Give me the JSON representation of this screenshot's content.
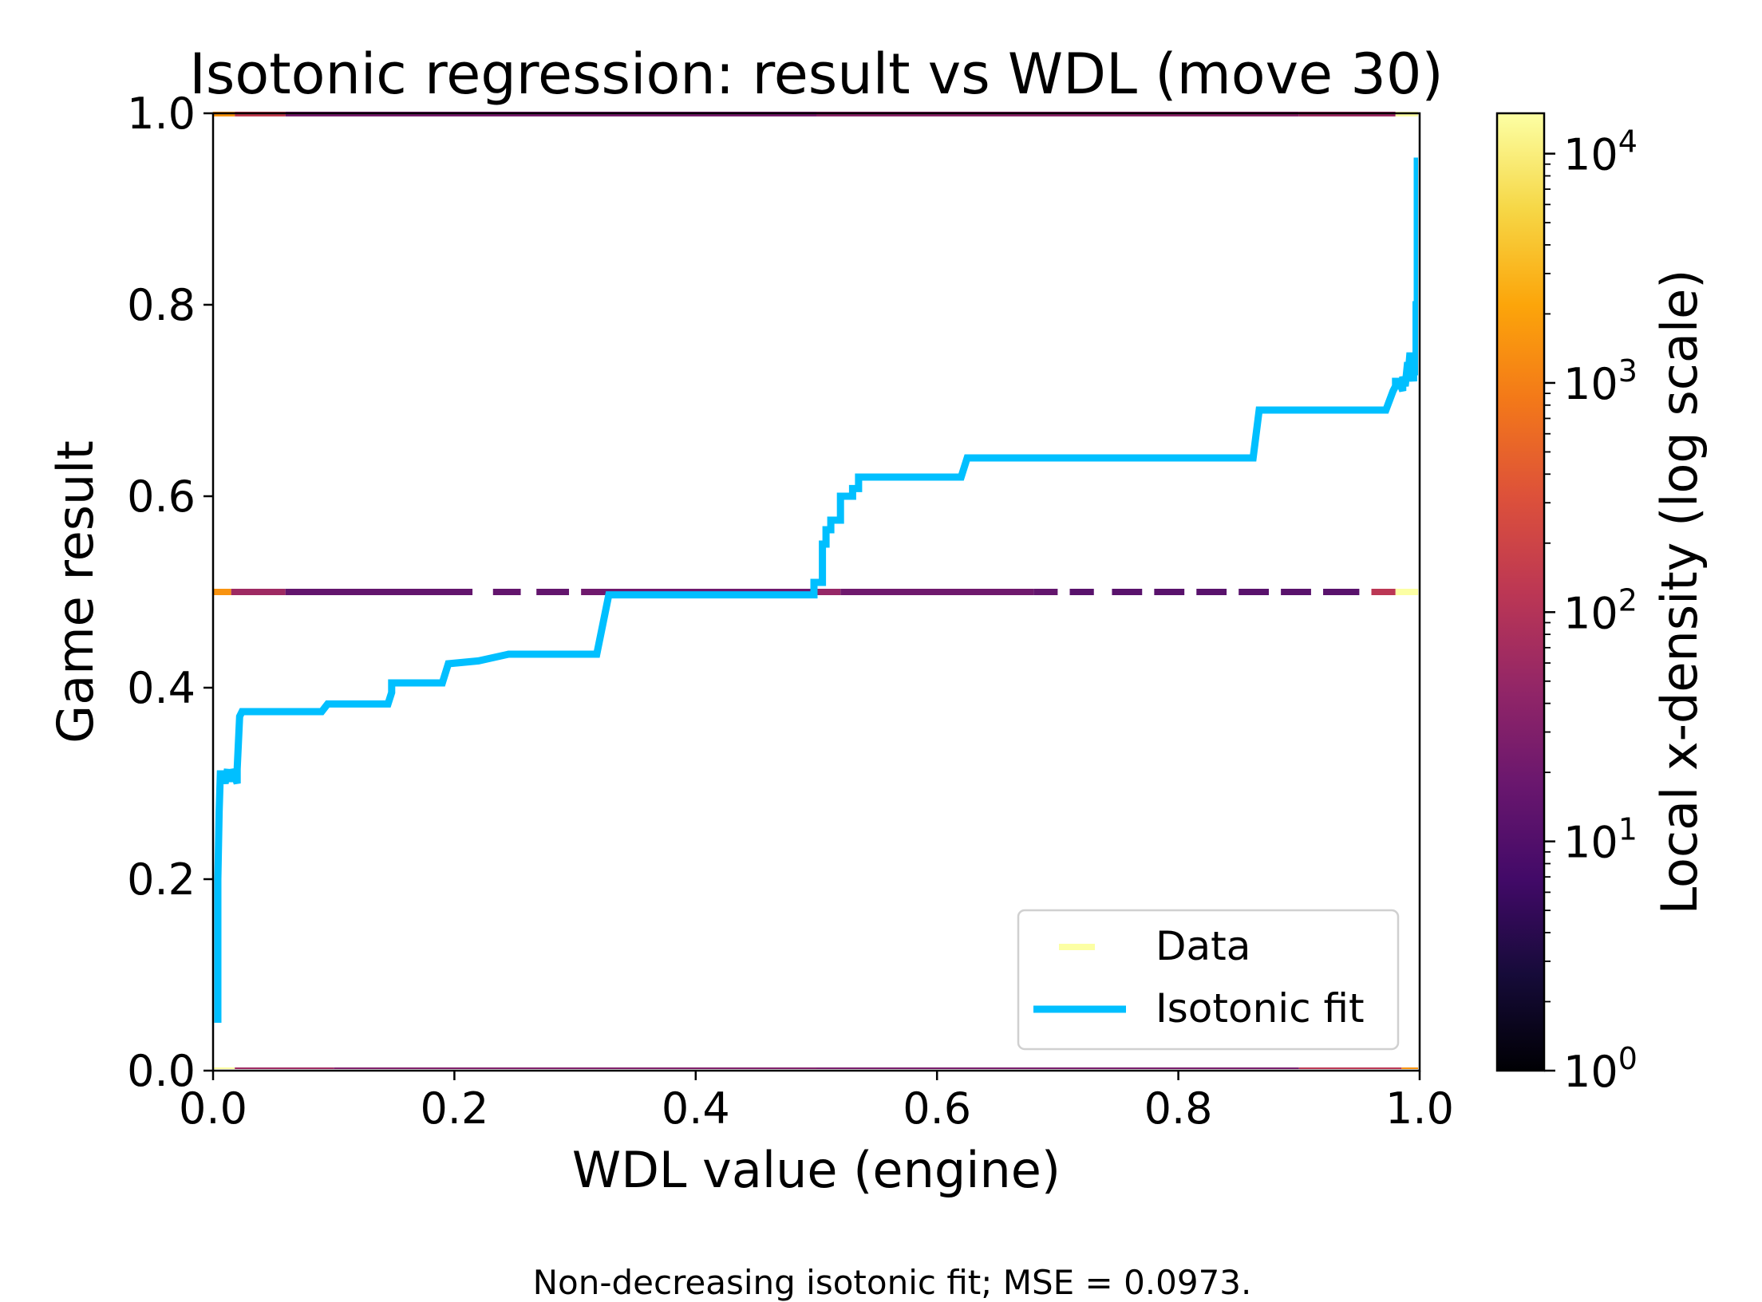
{
  "chart_data": {
    "type": "line",
    "title": "Isotonic regression: result vs WDL (move 30)",
    "xlabel": "WDL value (engine)",
    "ylabel": "Game result",
    "xlim": [
      0.0,
      1.0
    ],
    "ylim": [
      0.0,
      1.0
    ],
    "xticks": [
      "0.0",
      "0.2",
      "0.4",
      "0.6",
      "0.8",
      "1.0"
    ],
    "yticks": [
      "0.0",
      "0.2",
      "0.4",
      "0.6",
      "0.8",
      "1.0"
    ],
    "caption": "Non-decreasing isotonic fit; MSE = 0.0973.",
    "legend": {
      "position": "lower-right",
      "data_label": "Data",
      "fit_label": "Isotonic fit"
    },
    "colors": {
      "fit": "#00bfff",
      "data_legend": "#fcffa4"
    },
    "colorbar": {
      "label": "Local x-density (log scale)",
      "scale": "log",
      "range": [
        1,
        15000
      ],
      "tick_exponents": [
        "0",
        "1",
        "2",
        "3",
        "4"
      ],
      "tick_base": "10",
      "colormap": "inferno"
    },
    "data_series": [
      {
        "y": 1.0,
        "segments": [
          {
            "x0": 0.0,
            "x1": 0.018,
            "density": 1500
          },
          {
            "x0": 0.018,
            "x1": 0.06,
            "density": 150
          },
          {
            "x0": 0.06,
            "x1": 0.5,
            "density": 25
          },
          {
            "x0": 0.5,
            "x1": 0.9,
            "density": 40
          },
          {
            "x0": 0.9,
            "x1": 0.98,
            "density": 60
          },
          {
            "x0": 0.98,
            "x1": 1.0,
            "density": 15000
          }
        ]
      },
      {
        "y": 0.5,
        "segments": [
          {
            "x0": 0.0,
            "x1": 0.015,
            "density": 1500
          },
          {
            "x0": 0.015,
            "x1": 0.06,
            "density": 60
          },
          {
            "x0": 0.06,
            "x1": 0.215,
            "density": 15
          },
          {
            "x0": 0.232,
            "x1": 0.255,
            "density": 15
          },
          {
            "x0": 0.268,
            "x1": 0.295,
            "density": 15
          },
          {
            "x0": 0.305,
            "x1": 0.5,
            "density": 20
          },
          {
            "x0": 0.5,
            "x1": 0.52,
            "density": 50
          },
          {
            "x0": 0.52,
            "x1": 0.68,
            "density": 20
          },
          {
            "x0": 0.68,
            "x1": 0.7,
            "density": 15
          },
          {
            "x0": 0.71,
            "x1": 0.73,
            "density": 12
          },
          {
            "x0": 0.745,
            "x1": 0.77,
            "density": 12
          },
          {
            "x0": 0.78,
            "x1": 0.805,
            "density": 12
          },
          {
            "x0": 0.815,
            "x1": 0.84,
            "density": 12
          },
          {
            "x0": 0.85,
            "x1": 0.875,
            "density": 12
          },
          {
            "x0": 0.885,
            "x1": 0.91,
            "density": 12
          },
          {
            "x0": 0.92,
            "x1": 0.95,
            "density": 12
          },
          {
            "x0": 0.96,
            "x1": 0.98,
            "density": 120
          },
          {
            "x0": 0.98,
            "x1": 1.0,
            "density": 15000
          }
        ]
      },
      {
        "y": 0.0,
        "segments": [
          {
            "x0": 0.0,
            "x1": 0.018,
            "density": 15000
          },
          {
            "x0": 0.018,
            "x1": 0.1,
            "density": 60
          },
          {
            "x0": 0.1,
            "x1": 0.5,
            "density": 30
          },
          {
            "x0": 0.5,
            "x1": 0.9,
            "density": 25
          },
          {
            "x0": 0.9,
            "x1": 0.985,
            "density": 120
          },
          {
            "x0": 0.985,
            "x1": 1.0,
            "density": 1500
          }
        ]
      }
    ],
    "isotonic_fit": {
      "x": [
        0.004,
        0.004,
        0.005,
        0.006,
        0.008,
        0.01,
        0.012,
        0.012,
        0.016,
        0.016,
        0.02,
        0.02,
        0.022,
        0.024,
        0.024,
        0.09,
        0.095,
        0.095,
        0.145,
        0.148,
        0.148,
        0.19,
        0.195,
        0.195,
        0.22,
        0.22,
        0.245,
        0.245,
        0.318,
        0.328,
        0.328,
        0.498,
        0.498,
        0.505,
        0.505,
        0.508,
        0.508,
        0.512,
        0.512,
        0.52,
        0.52,
        0.53,
        0.53,
        0.535,
        0.535,
        0.62,
        0.625,
        0.625,
        0.862,
        0.867,
        0.867,
        0.972,
        0.975,
        0.978,
        0.98,
        0.98,
        0.983,
        0.986,
        0.986,
        0.988,
        0.99,
        0.99,
        0.992,
        0.995,
        0.995,
        0.997,
        0.997,
        0.998,
        0.998,
        0.999
      ],
      "y": [
        0.05,
        0.2,
        0.27,
        0.31,
        0.31,
        0.3,
        0.315,
        0.305,
        0.305,
        0.315,
        0.3,
        0.315,
        0.37,
        0.375,
        0.375,
        0.375,
        0.383,
        0.383,
        0.383,
        0.395,
        0.405,
        0.405,
        0.425,
        0.425,
        0.428,
        0.428,
        0.435,
        0.435,
        0.435,
        0.497,
        0.497,
        0.497,
        0.51,
        0.51,
        0.55,
        0.55,
        0.565,
        0.565,
        0.575,
        0.575,
        0.6,
        0.6,
        0.608,
        0.608,
        0.62,
        0.62,
        0.64,
        0.64,
        0.64,
        0.69,
        0.69,
        0.69,
        0.7,
        0.71,
        0.715,
        0.72,
        0.72,
        0.71,
        0.725,
        0.715,
        0.74,
        0.72,
        0.75,
        0.72,
        0.73,
        0.73,
        0.8,
        0.8,
        0.95,
        0.95
      ]
    }
  }
}
